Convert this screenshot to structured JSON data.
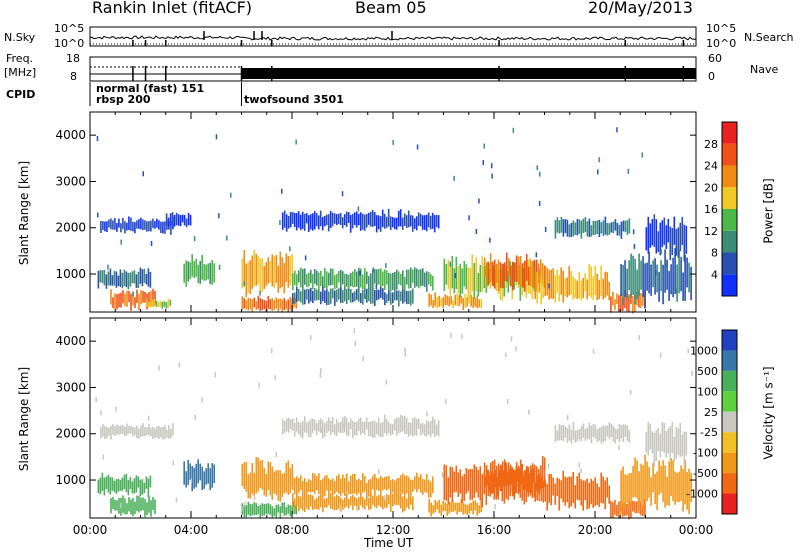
{
  "header": {
    "station": "Rankin Inlet (fitACF)",
    "beam": "Beam 05",
    "date": "20/May/2013"
  },
  "side_labels": {
    "nsky": "N.Sky",
    "nsearch": "N.Search",
    "freq": "Freq.",
    "mhz": "[MHz]",
    "nave": "Nave",
    "cpid": "CPID"
  },
  "noise_axis": {
    "top": "10^5",
    "bottom": "10^0"
  },
  "freq_axis": {
    "left_top": "18",
    "left_bottom": "8",
    "right_top": "60",
    "right_bottom": "0"
  },
  "cpid_segments": [
    {
      "label": "normal (fast) 151",
      "start_h": 0.0
    },
    {
      "label": "rbsp 200",
      "start_h": 0.0
    },
    {
      "label": "twofsound 3501",
      "start_h": 6.0
    }
  ],
  "time_axis": {
    "label": "Time UT",
    "ticks": [
      "00:00",
      "04:00",
      "08:00",
      "12:00",
      "16:00",
      "20:00",
      "00:00"
    ]
  },
  "range_axis": {
    "label": "Slant Range [km]",
    "ticks": [
      "1000",
      "2000",
      "3000",
      "4000"
    ]
  },
  "power_colorbar": {
    "label": "Power [dB]",
    "ticks": [
      "4",
      "8",
      "12",
      "16",
      "20",
      "24",
      "28"
    ],
    "colors": [
      "#1030ff",
      "#2850b0",
      "#3c8c78",
      "#4cb848",
      "#f0c828",
      "#f08c14",
      "#f05018",
      "#e82020"
    ]
  },
  "velocity_colorbar": {
    "label": "Velocity [m s⁻¹]",
    "ticks": [
      "1000",
      "500",
      "100",
      "25",
      "-25",
      "-100",
      "-500",
      "-1000"
    ],
    "colors": [
      "#2040c0",
      "#3878a8",
      "#48b058",
      "#60d040",
      "#c8c8c0",
      "#f0c028",
      "#f09818",
      "#f06814",
      "#e82020"
    ]
  },
  "chart_data": {
    "type": "heatmap",
    "title": "Rankin Inlet (fitACF)",
    "xlabel": "Time UT",
    "ylabel": "Slant Range [km]",
    "xlim_hours": [
      0,
      24
    ],
    "ylim_km": [
      180,
      4500
    ],
    "panels": [
      {
        "name": "Power [dB]",
        "patches": [
          {
            "t0": 0.3,
            "t1": 2.4,
            "r0": 700,
            "r1": 1100,
            "value": 8
          },
          {
            "t0": 0.8,
            "t1": 2.6,
            "r0": 250,
            "r1": 650,
            "value": 24
          },
          {
            "t0": 0.4,
            "t1": 3.3,
            "r0": 1900,
            "r1": 2200,
            "value": 4
          },
          {
            "t0": 3.0,
            "t1": 4.0,
            "r0": 2000,
            "r1": 2300,
            "value": 4
          },
          {
            "t0": 2.2,
            "t1": 3.2,
            "r0": 250,
            "r1": 450,
            "value": 16
          },
          {
            "t0": 3.7,
            "t1": 4.9,
            "r0": 800,
            "r1": 1400,
            "value": 12
          },
          {
            "t0": 6.0,
            "t1": 8.0,
            "r0": 600,
            "r1": 1400,
            "value": 20
          },
          {
            "t0": 6.0,
            "t1": 8.2,
            "r0": 200,
            "r1": 500,
            "value": 24
          },
          {
            "t0": 7.6,
            "t1": 13.8,
            "r0": 1950,
            "r1": 2350,
            "value": 4
          },
          {
            "t0": 8.0,
            "t1": 13.6,
            "r0": 650,
            "r1": 1100,
            "value": 12
          },
          {
            "t0": 8.0,
            "t1": 12.8,
            "r0": 350,
            "r1": 700,
            "value": 8
          },
          {
            "t0": 13.4,
            "t1": 15.5,
            "r0": 250,
            "r1": 550,
            "value": 20
          },
          {
            "t0": 14.0,
            "t1": 17.6,
            "r0": 500,
            "r1": 1300,
            "value": 16
          },
          {
            "t0": 15.6,
            "t1": 18.0,
            "r0": 700,
            "r1": 1400,
            "value": 24
          },
          {
            "t0": 17.6,
            "t1": 20.6,
            "r0": 400,
            "r1": 1100,
            "value": 20
          },
          {
            "t0": 18.4,
            "t1": 21.4,
            "r0": 1800,
            "r1": 2200,
            "value": 8
          },
          {
            "t0": 20.6,
            "t1": 22.0,
            "r0": 200,
            "r1": 600,
            "value": 24
          },
          {
            "t0": 21.0,
            "t1": 23.8,
            "r0": 400,
            "r1": 1400,
            "value": 8
          },
          {
            "t0": 22.0,
            "t1": 23.6,
            "r0": 1400,
            "r1": 2200,
            "value": 4
          }
        ]
      },
      {
        "name": "Velocity [m s⁻¹]",
        "patches": [
          {
            "t0": 0.3,
            "t1": 2.4,
            "r0": 700,
            "r1": 1100,
            "value": 100
          },
          {
            "t0": 0.8,
            "t1": 2.6,
            "r0": 250,
            "r1": 650,
            "value": 100
          },
          {
            "t0": 0.4,
            "t1": 3.3,
            "r0": 1900,
            "r1": 2200,
            "value": 0
          },
          {
            "t0": 3.7,
            "t1": 4.9,
            "r0": 800,
            "r1": 1400,
            "value": 500
          },
          {
            "t0": 6.0,
            "t1": 8.0,
            "r0": 600,
            "r1": 1400,
            "value": -100
          },
          {
            "t0": 6.0,
            "t1": 8.2,
            "r0": 200,
            "r1": 500,
            "value": 100
          },
          {
            "t0": 7.6,
            "t1": 13.8,
            "r0": 1950,
            "r1": 2350,
            "value": 0
          },
          {
            "t0": 8.0,
            "t1": 13.6,
            "r0": 650,
            "r1": 1100,
            "value": -100
          },
          {
            "t0": 8.0,
            "t1": 12.8,
            "r0": 350,
            "r1": 700,
            "value": -100
          },
          {
            "t0": 13.4,
            "t1": 15.5,
            "r0": 250,
            "r1": 550,
            "value": -100
          },
          {
            "t0": 14.0,
            "t1": 17.6,
            "r0": 500,
            "r1": 1300,
            "value": -500
          },
          {
            "t0": 15.6,
            "t1": 18.0,
            "r0": 700,
            "r1": 1400,
            "value": -500
          },
          {
            "t0": 17.6,
            "t1": 20.6,
            "r0": 400,
            "r1": 1100,
            "value": -500
          },
          {
            "t0": 18.4,
            "t1": 21.4,
            "r0": 1800,
            "r1": 2200,
            "value": 0
          },
          {
            "t0": 20.6,
            "t1": 22.0,
            "r0": 200,
            "r1": 600,
            "value": -500
          },
          {
            "t0": 21.0,
            "t1": 23.8,
            "r0": 400,
            "r1": 1400,
            "value": -100
          },
          {
            "t0": 22.0,
            "t1": 23.6,
            "r0": 1400,
            "r1": 2200,
            "value": 0
          }
        ]
      }
    ]
  }
}
